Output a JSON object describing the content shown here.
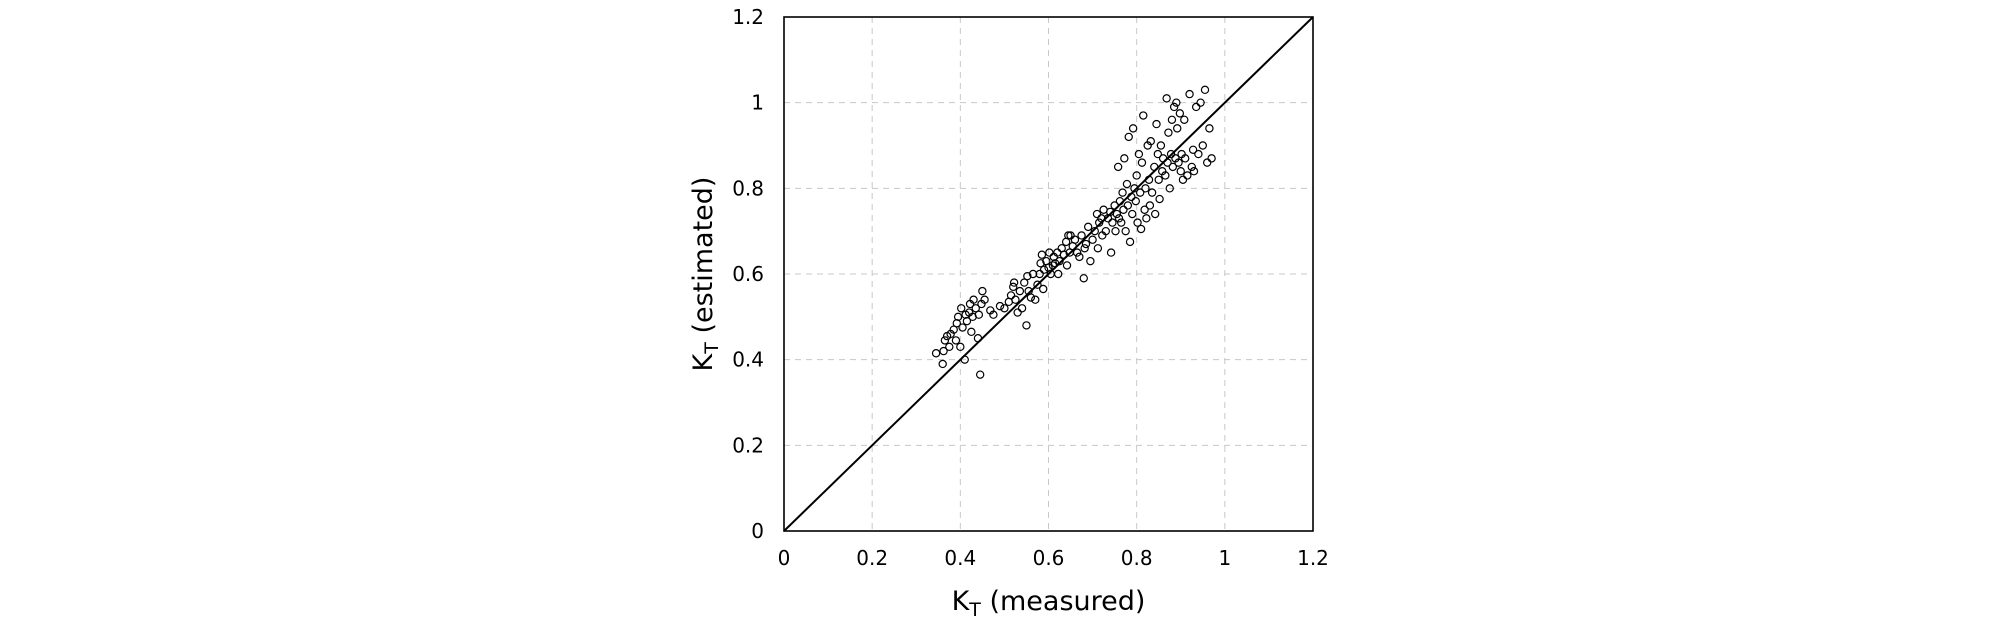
{
  "chart_data": {
    "type": "scatter",
    "title": "",
    "xlabel": {
      "main": "K",
      "sub": "T",
      "suffix": " (measured)"
    },
    "ylabel": {
      "main": "K",
      "sub": "T",
      "suffix": " (estimated)"
    },
    "xlim": [
      0,
      1.2
    ],
    "ylim": [
      0,
      1.2
    ],
    "x_ticks": [
      "0",
      "0.2",
      "0.4",
      "0.6",
      "0.8",
      "1",
      "1.2"
    ],
    "y_ticks": [
      "0",
      "0.2",
      "0.4",
      "0.6",
      "0.8",
      "1",
      "1.2"
    ],
    "x_tick_values": [
      0,
      0.2,
      0.4,
      0.6,
      0.8,
      1,
      1.2
    ],
    "y_tick_values": [
      0,
      0.2,
      0.4,
      0.6,
      0.8,
      1,
      1.2
    ],
    "grid": true,
    "reference_line": {
      "from": [
        0,
        0
      ],
      "to": [
        1.2,
        1.2
      ]
    },
    "marker": "open-circle",
    "colors": {
      "marker": "#000000",
      "grid": "#c8c8c8",
      "frame": "#000000"
    },
    "series": [
      {
        "points": [
          [
            0.345,
            0.415
          ],
          [
            0.36,
            0.39
          ],
          [
            0.362,
            0.42
          ],
          [
            0.365,
            0.445
          ],
          [
            0.37,
            0.455
          ],
          [
            0.375,
            0.43
          ],
          [
            0.378,
            0.46
          ],
          [
            0.385,
            0.47
          ],
          [
            0.39,
            0.445
          ],
          [
            0.392,
            0.485
          ],
          [
            0.395,
            0.5
          ],
          [
            0.4,
            0.43
          ],
          [
            0.402,
            0.52
          ],
          [
            0.405,
            0.475
          ],
          [
            0.41,
            0.4
          ],
          [
            0.412,
            0.505
          ],
          [
            0.415,
            0.49
          ],
          [
            0.42,
            0.51
          ],
          [
            0.422,
            0.53
          ],
          [
            0.425,
            0.465
          ],
          [
            0.428,
            0.5
          ],
          [
            0.43,
            0.54
          ],
          [
            0.435,
            0.52
          ],
          [
            0.44,
            0.45
          ],
          [
            0.442,
            0.505
          ],
          [
            0.445,
            0.365
          ],
          [
            0.448,
            0.53
          ],
          [
            0.45,
            0.56
          ],
          [
            0.455,
            0.54
          ],
          [
            0.468,
            0.515
          ],
          [
            0.475,
            0.505
          ],
          [
            0.49,
            0.525
          ],
          [
            0.5,
            0.52
          ],
          [
            0.51,
            0.535
          ],
          [
            0.515,
            0.55
          ],
          [
            0.52,
            0.57
          ],
          [
            0.522,
            0.58
          ],
          [
            0.525,
            0.54
          ],
          [
            0.53,
            0.51
          ],
          [
            0.535,
            0.56
          ],
          [
            0.54,
            0.52
          ],
          [
            0.545,
            0.58
          ],
          [
            0.55,
            0.48
          ],
          [
            0.552,
            0.595
          ],
          [
            0.555,
            0.56
          ],
          [
            0.56,
            0.545
          ],
          [
            0.565,
            0.6
          ],
          [
            0.57,
            0.54
          ],
          [
            0.575,
            0.575
          ],
          [
            0.58,
            0.6
          ],
          [
            0.582,
            0.625
          ],
          [
            0.585,
            0.645
          ],
          [
            0.588,
            0.565
          ],
          [
            0.59,
            0.61
          ],
          [
            0.595,
            0.63
          ],
          [
            0.6,
            0.615
          ],
          [
            0.602,
            0.65
          ],
          [
            0.605,
            0.6
          ],
          [
            0.61,
            0.62
          ],
          [
            0.612,
            0.64
          ],
          [
            0.615,
            0.625
          ],
          [
            0.62,
            0.65
          ],
          [
            0.622,
            0.6
          ],
          [
            0.625,
            0.63
          ],
          [
            0.63,
            0.66
          ],
          [
            0.635,
            0.645
          ],
          [
            0.64,
            0.675
          ],
          [
            0.642,
            0.62
          ],
          [
            0.645,
            0.69
          ],
          [
            0.648,
            0.65
          ],
          [
            0.65,
            0.69
          ],
          [
            0.655,
            0.665
          ],
          [
            0.66,
            0.68
          ],
          [
            0.665,
            0.65
          ],
          [
            0.67,
            0.64
          ],
          [
            0.675,
            0.69
          ],
          [
            0.68,
            0.59
          ],
          [
            0.682,
            0.66
          ],
          [
            0.685,
            0.67
          ],
          [
            0.69,
            0.71
          ],
          [
            0.695,
            0.63
          ],
          [
            0.7,
            0.68
          ],
          [
            0.705,
            0.7
          ],
          [
            0.71,
            0.74
          ],
          [
            0.712,
            0.66
          ],
          [
            0.715,
            0.72
          ],
          [
            0.72,
            0.73
          ],
          [
            0.722,
            0.69
          ],
          [
            0.725,
            0.75
          ],
          [
            0.73,
            0.7
          ],
          [
            0.735,
            0.73
          ],
          [
            0.74,
            0.745
          ],
          [
            0.742,
            0.65
          ],
          [
            0.745,
            0.72
          ],
          [
            0.75,
            0.76
          ],
          [
            0.752,
            0.7
          ],
          [
            0.755,
            0.74
          ],
          [
            0.758,
            0.85
          ],
          [
            0.76,
            0.73
          ],
          [
            0.762,
            0.77
          ],
          [
            0.765,
            0.72
          ],
          [
            0.768,
            0.79
          ],
          [
            0.77,
            0.75
          ],
          [
            0.772,
            0.87
          ],
          [
            0.775,
            0.7
          ],
          [
            0.778,
            0.81
          ],
          [
            0.78,
            0.76
          ],
          [
            0.782,
            0.92
          ],
          [
            0.785,
            0.675
          ],
          [
            0.788,
            0.78
          ],
          [
            0.79,
            0.74
          ],
          [
            0.792,
            0.94
          ],
          [
            0.795,
            0.8
          ],
          [
            0.798,
            0.77
          ],
          [
            0.8,
            0.83
          ],
          [
            0.802,
            0.72
          ],
          [
            0.805,
            0.88
          ],
          [
            0.808,
            0.79
          ],
          [
            0.81,
            0.705
          ],
          [
            0.812,
            0.86
          ],
          [
            0.815,
            0.97
          ],
          [
            0.818,
            0.75
          ],
          [
            0.82,
            0.8
          ],
          [
            0.822,
            0.73
          ],
          [
            0.825,
            0.9
          ],
          [
            0.828,
            0.82
          ],
          [
            0.83,
            0.76
          ],
          [
            0.832,
            0.91
          ],
          [
            0.835,
            0.79
          ],
          [
            0.84,
            0.85
          ],
          [
            0.842,
            0.74
          ],
          [
            0.845,
            0.95
          ],
          [
            0.848,
            0.88
          ],
          [
            0.85,
            0.82
          ],
          [
            0.852,
            0.775
          ],
          [
            0.855,
            0.9
          ],
          [
            0.858,
            0.84
          ],
          [
            0.86,
            0.87
          ],
          [
            0.865,
            0.83
          ],
          [
            0.868,
            1.01
          ],
          [
            0.87,
            0.86
          ],
          [
            0.872,
            0.93
          ],
          [
            0.875,
            0.8
          ],
          [
            0.878,
            0.88
          ],
          [
            0.88,
            0.96
          ],
          [
            0.882,
            0.85
          ],
          [
            0.885,
            0.99
          ],
          [
            0.888,
            0.87
          ],
          [
            0.89,
            1.0
          ],
          [
            0.892,
            0.94
          ],
          [
            0.895,
            0.86
          ],
          [
            0.898,
            0.975
          ],
          [
            0.9,
            0.84
          ],
          [
            0.902,
            0.88
          ],
          [
            0.905,
            0.82
          ],
          [
            0.908,
            0.96
          ],
          [
            0.91,
            0.87
          ],
          [
            0.915,
            0.83
          ],
          [
            0.92,
            1.02
          ],
          [
            0.925,
            0.85
          ],
          [
            0.928,
            0.89
          ],
          [
            0.93,
            0.84
          ],
          [
            0.935,
            0.99
          ],
          [
            0.94,
            0.88
          ],
          [
            0.945,
            1.0
          ],
          [
            0.95,
            0.9
          ],
          [
            0.955,
            1.03
          ],
          [
            0.96,
            0.86
          ],
          [
            0.965,
            0.94
          ],
          [
            0.97,
            0.87
          ]
        ]
      }
    ]
  }
}
